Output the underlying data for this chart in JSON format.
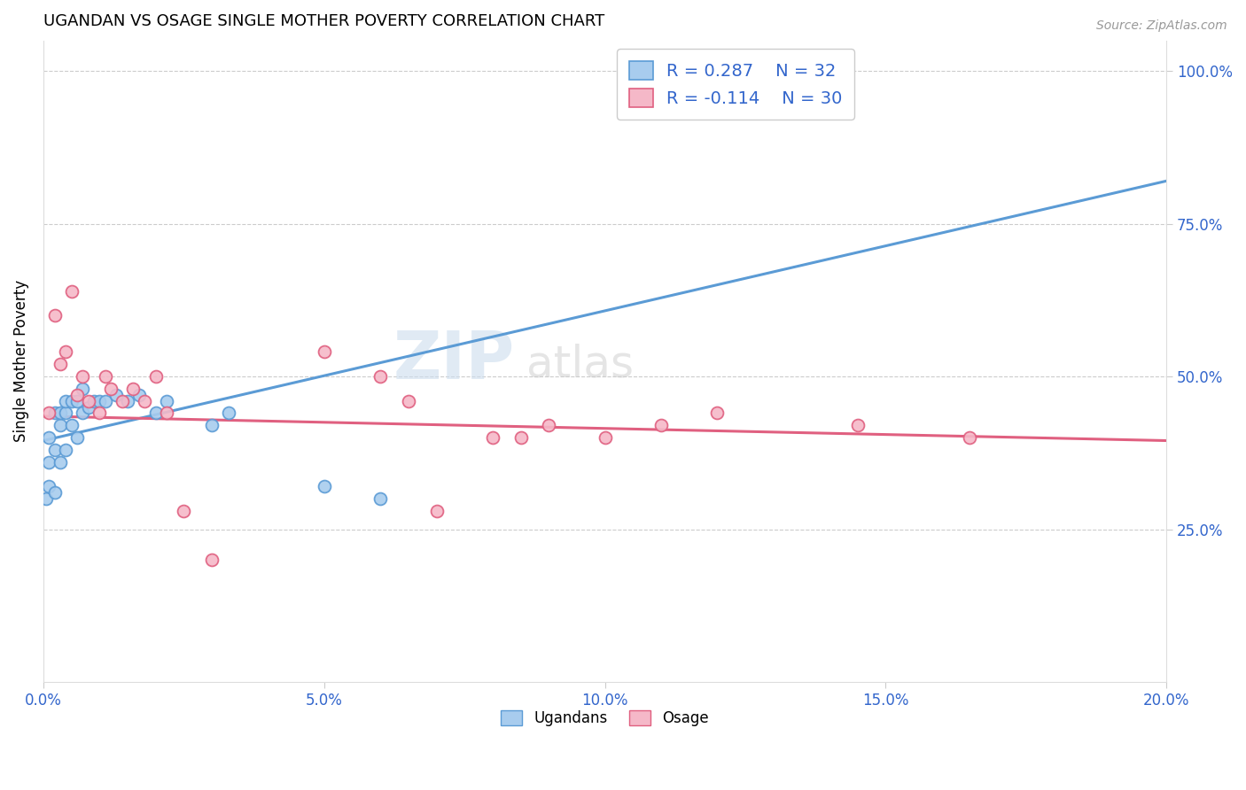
{
  "title": "UGANDAN VS OSAGE SINGLE MOTHER POVERTY CORRELATION CHART",
  "source": "Source: ZipAtlas.com",
  "ylabel": "Single Mother Poverty",
  "xlim": [
    0.0,
    0.2
  ],
  "ylim": [
    0.0,
    1.05
  ],
  "yticks": [
    0.25,
    0.5,
    0.75,
    1.0
  ],
  "ytick_labels": [
    "25.0%",
    "50.0%",
    "75.0%",
    "100.0%"
  ],
  "xticks": [
    0.0,
    0.05,
    0.1,
    0.15,
    0.2
  ],
  "xtick_labels": [
    "0.0%",
    "5.0%",
    "10.0%",
    "15.0%",
    "20.0%"
  ],
  "ugandan_R": 0.287,
  "ugandan_N": 32,
  "osage_R": -0.114,
  "osage_N": 30,
  "ugandan_color": "#A8CCEE",
  "ugandan_edge_color": "#5B9BD5",
  "osage_color": "#F5B8C8",
  "osage_edge_color": "#E06080",
  "ugandan_line_color": "#5B9BD5",
  "osage_line_color": "#E06080",
  "legend_labels": [
    "Ugandans",
    "Osage"
  ],
  "ug_line_x0": 0.0,
  "ug_line_y0": 0.395,
  "ug_line_x1": 0.2,
  "ug_line_y1": 0.82,
  "os_line_x0": 0.0,
  "os_line_y0": 0.435,
  "os_line_x1": 0.2,
  "os_line_y1": 0.395,
  "ugandan_x": [
    0.0005,
    0.001,
    0.001,
    0.001,
    0.002,
    0.002,
    0.002,
    0.003,
    0.003,
    0.003,
    0.004,
    0.004,
    0.004,
    0.005,
    0.005,
    0.006,
    0.006,
    0.007,
    0.007,
    0.008,
    0.009,
    0.01,
    0.011,
    0.013,
    0.015,
    0.017,
    0.02,
    0.022,
    0.03,
    0.033,
    0.05,
    0.06
  ],
  "ugandan_y": [
    0.3,
    0.32,
    0.36,
    0.4,
    0.31,
    0.38,
    0.44,
    0.36,
    0.42,
    0.44,
    0.38,
    0.44,
    0.46,
    0.42,
    0.46,
    0.4,
    0.46,
    0.44,
    0.48,
    0.45,
    0.46,
    0.46,
    0.46,
    0.47,
    0.46,
    0.47,
    0.44,
    0.46,
    0.42,
    0.44,
    0.32,
    0.3
  ],
  "osage_x": [
    0.001,
    0.002,
    0.003,
    0.004,
    0.005,
    0.006,
    0.007,
    0.008,
    0.01,
    0.011,
    0.012,
    0.014,
    0.016,
    0.018,
    0.02,
    0.022,
    0.025,
    0.03,
    0.05,
    0.06,
    0.065,
    0.07,
    0.08,
    0.085,
    0.09,
    0.1,
    0.11,
    0.12,
    0.145,
    0.165
  ],
  "osage_y": [
    0.44,
    0.6,
    0.52,
    0.54,
    0.64,
    0.47,
    0.5,
    0.46,
    0.44,
    0.5,
    0.48,
    0.46,
    0.48,
    0.46,
    0.5,
    0.44,
    0.28,
    0.2,
    0.54,
    0.5,
    0.46,
    0.28,
    0.4,
    0.4,
    0.42,
    0.4,
    0.42,
    0.44,
    0.42,
    0.4
  ]
}
